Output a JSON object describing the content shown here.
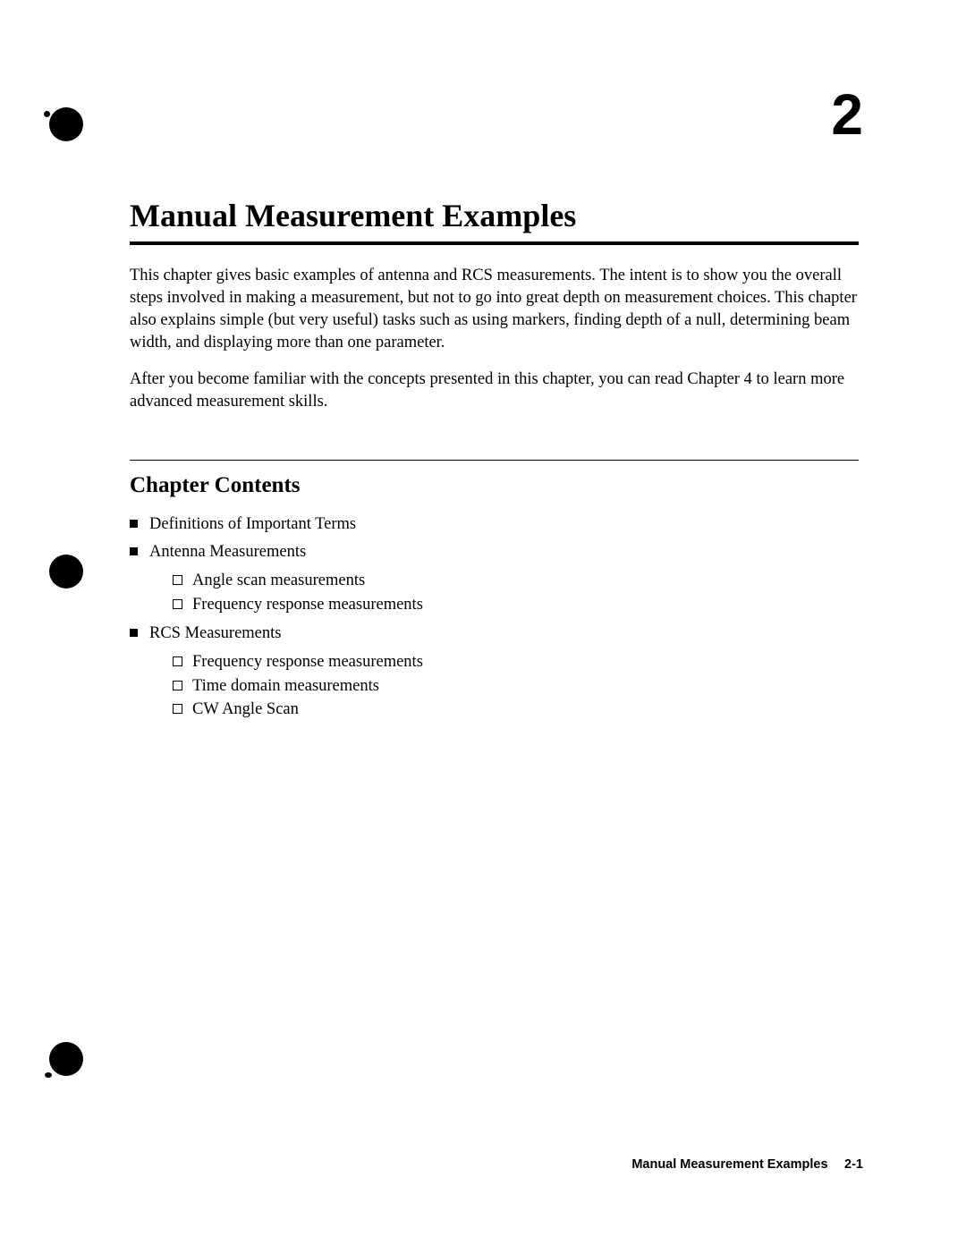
{
  "chapter_number": "2",
  "title": "Manual Measurement Examples",
  "intro_paragraphs": [
    "This chapter gives basic examples of antenna and RCS measurements. The intent is to show you the overall steps involved in making a measurement, but not to go into great depth on measurement choices. This chapter also explains simple (but very useful) tasks such as using markers, finding depth of a null, determining beam width, and displaying more than one parameter.",
    "After you become familiar with the concepts presented in this chapter, you can read Chapter 4 to learn more advanced measurement skills."
  ],
  "contents_heading": "Chapter Contents",
  "contents": [
    {
      "label": "Definitions of Important Terms",
      "sub": []
    },
    {
      "label": "Antenna Measurements",
      "sub": [
        "Angle scan measurements",
        "Frequency response measurements"
      ]
    },
    {
      "label": "RCS Measurements",
      "sub": [
        "Frequency response measurements",
        "Time domain measurements",
        "CW Angle Scan"
      ]
    }
  ],
  "footer": "Manual Measurement Examples  2-1",
  "colors": {
    "text": "#000000",
    "background": "#ffffff"
  },
  "typography": {
    "body_fontsize_pt": 14,
    "title_fontsize_pt": 27,
    "chapnum_fontsize_pt": 48,
    "subhead_fontsize_pt": 19,
    "footer_fontsize_pt": 11
  }
}
